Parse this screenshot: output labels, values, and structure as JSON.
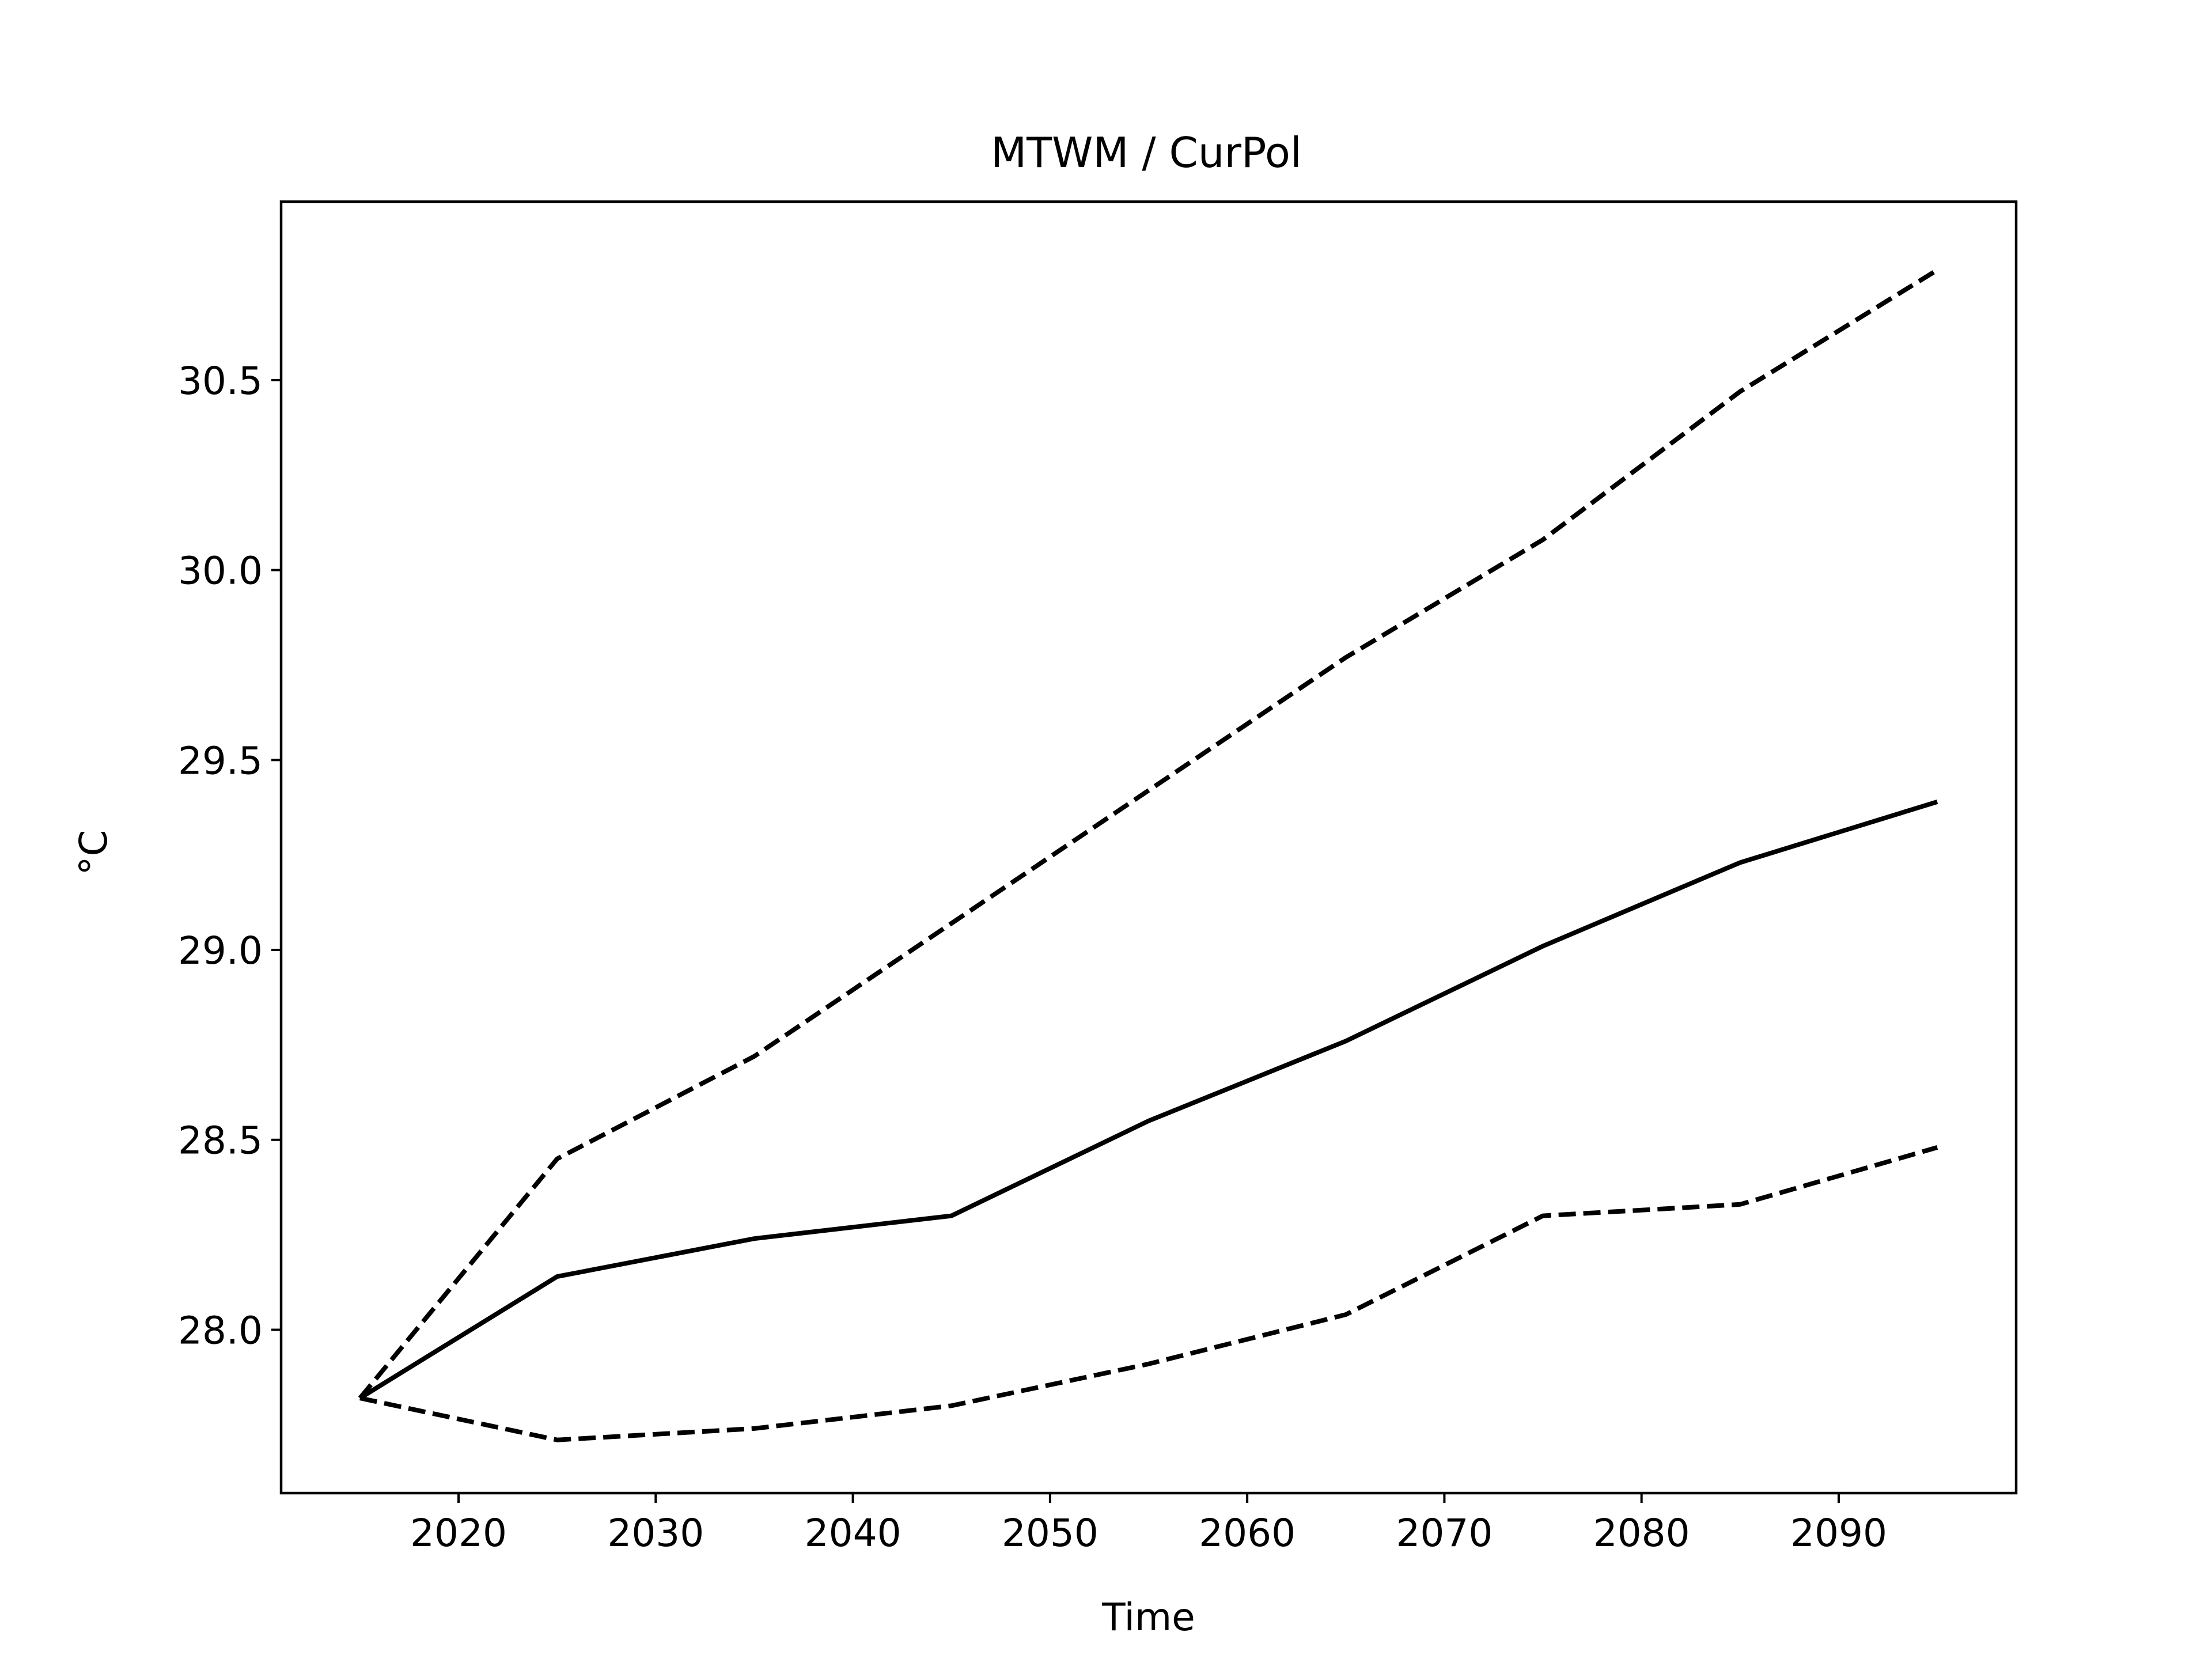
{
  "chart_data": {
    "type": "line",
    "title": "MTWM / CurPol",
    "xlabel": "Time",
    "ylabel": "°C",
    "x": [
      2015,
      2025,
      2035,
      2045,
      2055,
      2065,
      2075,
      2085,
      2095
    ],
    "xlim": [
      2011,
      2099
    ],
    "ylim": [
      27.57,
      30.97
    ],
    "xticks": [
      2020,
      2030,
      2040,
      2050,
      2060,
      2070,
      2080,
      2090
    ],
    "xtick_labels": [
      "2020",
      "2030",
      "2040",
      "2050",
      "2060",
      "2070",
      "2080",
      "2090"
    ],
    "yticks": [
      28.0,
      28.5,
      29.0,
      29.5,
      30.0,
      30.5
    ],
    "ytick_labels": [
      "28.0",
      "28.5",
      "29.0",
      "29.5",
      "30.0",
      "30.5"
    ],
    "grid": false,
    "legend": false,
    "series": [
      {
        "style": "dashed",
        "color": "#000000",
        "values": [
          27.82,
          28.45,
          28.72,
          29.07,
          29.42,
          29.77,
          30.08,
          30.47,
          30.79
        ]
      },
      {
        "style": "solid",
        "color": "#000000",
        "values": [
          27.82,
          28.14,
          28.24,
          28.3,
          28.55,
          28.76,
          29.01,
          29.23,
          29.39
        ]
      },
      {
        "style": "dashed",
        "color": "#000000",
        "values": [
          27.82,
          27.71,
          27.74,
          27.8,
          27.91,
          28.04,
          28.3,
          28.33,
          28.48
        ]
      }
    ]
  }
}
